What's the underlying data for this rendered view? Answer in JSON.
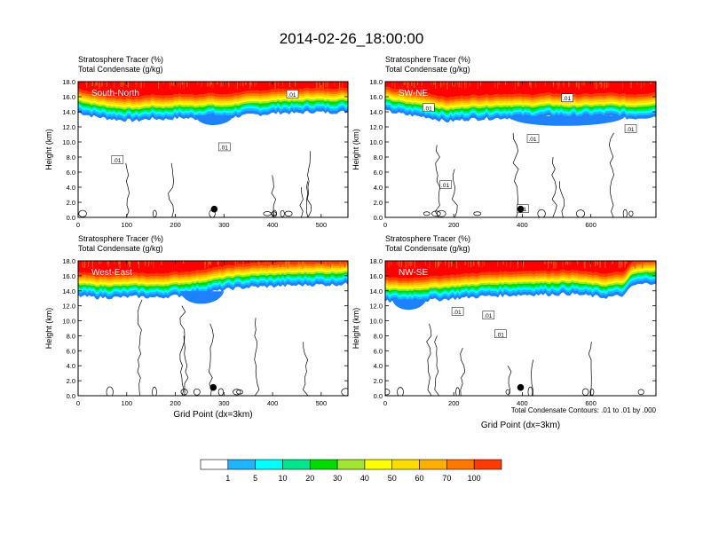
{
  "title": "2014-02-26_18:00:00",
  "footnote": "Total Condensate Contours: .01 to .01 by .000",
  "colors": {
    "levels": [
      "#ffffff",
      "#1e82ff",
      "#1eb4ff",
      "#00ffff",
      "#00e68c",
      "#00dc00",
      "#a0e632",
      "#ffff00",
      "#ffdc00",
      "#ffaf00",
      "#ff7800",
      "#ff3c00",
      "#ff0000"
    ],
    "contour": "#000000",
    "marker": "#000000"
  },
  "colorbar": {
    "labels": [
      "1",
      "5",
      "10",
      "20",
      "30",
      "40",
      "50",
      "60",
      "70",
      "100"
    ]
  },
  "chart_data": [
    {
      "type": "heatmap",
      "panel_label": "South-North",
      "title_line1": "Stratosphere Tracer   (%)",
      "title_line2": "Total Condensate   (g/kg)",
      "ylabel": "Height (km)",
      "xlabel": "",
      "xlim": [
        0,
        555
      ],
      "ylim": [
        0,
        18
      ],
      "xticks": [
        "0",
        "100",
        "200",
        "300",
        "400",
        "500"
      ],
      "xtick_values": [
        0,
        100,
        200,
        300,
        400,
        500
      ],
      "yticks": [
        "0.0",
        "2.0",
        "4.0",
        "6.0",
        "8.0",
        "10.0",
        "12.0",
        "14.0",
        "16.0",
        "18.0"
      ],
      "contour_labels": [
        {
          "text": ".01",
          "x": 80,
          "y": 7.6
        },
        {
          "text": ".01",
          "x": 300,
          "y": 9.3
        },
        {
          "text": ".01",
          "x": 440,
          "y": 16.3
        }
      ],
      "marker": {
        "x": 280,
        "y": 1.1
      },
      "tropopause_km": [
        [
          0,
          14.8
        ],
        [
          30,
          14.3
        ],
        [
          60,
          14.0
        ],
        [
          90,
          13.8
        ],
        [
          120,
          13.7
        ],
        [
          150,
          14.0
        ],
        [
          180,
          13.9
        ],
        [
          210,
          14.1
        ],
        [
          240,
          14.0
        ],
        [
          270,
          14.2
        ],
        [
          300,
          14.0
        ],
        [
          330,
          14.3
        ],
        [
          360,
          14.5
        ],
        [
          390,
          14.6
        ],
        [
          420,
          14.8
        ],
        [
          450,
          14.7
        ],
        [
          480,
          14.9
        ],
        [
          510,
          14.8
        ],
        [
          555,
          14.9
        ]
      ],
      "shallow_band": [
        [
          240,
          12.4
        ],
        [
          320,
          12.5
        ]
      ]
    },
    {
      "type": "heatmap",
      "panel_label": "SW-NE",
      "title_line1": "Stratosphere Tracer   (%)",
      "title_line2": "Total Condensate   (g/kg)",
      "ylabel": "Height (km)",
      "xlabel": "",
      "xlim": [
        0,
        790
      ],
      "ylim": [
        0,
        18
      ],
      "xticks": [
        "0",
        "200",
        "400",
        "600"
      ],
      "xtick_values": [
        0,
        200,
        400,
        600
      ],
      "yticks": [
        "0.0",
        "2.0",
        "4.0",
        "6.0",
        "8.0",
        "10.0",
        "12.0",
        "14.0",
        "16.0",
        "18.0"
      ],
      "contour_labels": [
        {
          "text": ".01",
          "x": 125,
          "y": 14.5
        },
        {
          "text": ".01",
          "x": 175,
          "y": 4.3
        },
        {
          "text": ".01",
          "x": 430,
          "y": 10.4
        },
        {
          "text": ".01",
          "x": 530,
          "y": 15.8
        },
        {
          "text": ".01",
          "x": 715,
          "y": 11.7
        },
        {
          "text": ".01",
          "x": 400,
          "y": 1.1
        }
      ],
      "marker": {
        "x": 395,
        "y": 1.1
      },
      "tropopause_km": [
        [
          0,
          15.0
        ],
        [
          60,
          14.5
        ],
        [
          120,
          14.2
        ],
        [
          180,
          13.6
        ],
        [
          240,
          13.9
        ],
        [
          300,
          14.0
        ],
        [
          360,
          14.1
        ],
        [
          420,
          14.0
        ],
        [
          480,
          14.2
        ],
        [
          540,
          14.0
        ],
        [
          600,
          14.1
        ],
        [
          660,
          14.2
        ],
        [
          720,
          14.0
        ],
        [
          790,
          14.3
        ]
      ],
      "shallow_band": [
        [
          360,
          12.3
        ],
        [
          700,
          12.8
        ]
      ]
    },
    {
      "type": "heatmap",
      "panel_label": "West-East",
      "title_line1": "Stratosphere Tracer   (%)",
      "title_line2": "Total Condensate   (g/kg)",
      "ylabel": "Height (km)",
      "xlabel": "Grid Point (dx=3km)",
      "xlim": [
        0,
        555
      ],
      "ylim": [
        0,
        18
      ],
      "xticks": [
        "0",
        "100",
        "200",
        "300",
        "400",
        "500"
      ],
      "xtick_values": [
        0,
        100,
        200,
        300,
        400,
        500
      ],
      "yticks": [
        "0.0",
        "2.0",
        "4.0",
        "6.0",
        "8.0",
        "10.0",
        "12.0",
        "14.0",
        "16.0",
        "18.0"
      ],
      "contour_labels": [],
      "marker": {
        "x": 278,
        "y": 1.1
      },
      "tropopause_km": [
        [
          0,
          14.2
        ],
        [
          40,
          14.0
        ],
        [
          80,
          14.0
        ],
        [
          120,
          14.1
        ],
        [
          160,
          14.0
        ],
        [
          200,
          14.2
        ],
        [
          240,
          14.4
        ],
        [
          280,
          14.8
        ],
        [
          320,
          15.2
        ],
        [
          360,
          15.4
        ],
        [
          400,
          15.5
        ],
        [
          440,
          15.6
        ],
        [
          480,
          15.7
        ],
        [
          520,
          15.7
        ],
        [
          555,
          15.8
        ]
      ],
      "shallow_band": [
        [
          210,
          12.3
        ],
        [
          300,
          12.5
        ]
      ]
    },
    {
      "type": "heatmap",
      "panel_label": "NW-SE",
      "title_line1": "Stratosphere Tracer   (%)",
      "title_line2": "Total Condensate   (g/kg)",
      "ylabel": "Height (km)",
      "xlabel": "Grid Point (dx=3km)",
      "xlim": [
        0,
        790
      ],
      "ylim": [
        0,
        18
      ],
      "xticks": [
        "0",
        "200",
        "400",
        "600"
      ],
      "xtick_values": [
        0,
        200,
        400,
        600
      ],
      "yticks": [
        "0.0",
        "2.0",
        "4.0",
        "6.0",
        "8.0",
        "10.0",
        "12.0",
        "14.0",
        "16.0",
        "18.0"
      ],
      "contour_labels": [
        {
          "text": ".01",
          "x": 210,
          "y": 11.2
        },
        {
          "text": ".01",
          "x": 300,
          "y": 10.7
        },
        {
          "text": ".01",
          "x": 335,
          "y": 8.2
        }
      ],
      "marker": {
        "x": 395,
        "y": 1.1
      },
      "tropopause_km": [
        [
          0,
          13.5
        ],
        [
          60,
          13.4
        ],
        [
          120,
          13.6
        ],
        [
          180,
          13.8
        ],
        [
          240,
          14.0
        ],
        [
          300,
          14.2
        ],
        [
          360,
          14.3
        ],
        [
          420,
          14.4
        ],
        [
          480,
          14.4
        ],
        [
          540,
          14.5
        ],
        [
          600,
          14.2
        ],
        [
          640,
          14.0
        ],
        [
          700,
          14.3
        ],
        [
          720,
          15.6
        ],
        [
          790,
          16.0
        ]
      ],
      "shallow_band": [
        [
          20,
          11.6
        ],
        [
          120,
          12.6
        ]
      ]
    }
  ]
}
